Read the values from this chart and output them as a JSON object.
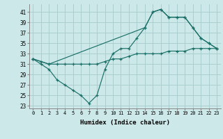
{
  "xlabel": "Humidex (Indice chaleur)",
  "xlim": [
    -0.5,
    23.5
  ],
  "ylim": [
    22.5,
    42.5
  ],
  "xticks": [
    0,
    1,
    2,
    3,
    4,
    5,
    6,
    7,
    8,
    9,
    10,
    11,
    12,
    13,
    14,
    15,
    16,
    17,
    18,
    19,
    20,
    21,
    22,
    23
  ],
  "yticks": [
    23,
    25,
    27,
    29,
    31,
    33,
    35,
    37,
    39,
    41
  ],
  "bg_color": "#cce8e8",
  "line_color": "#1a7068",
  "grid_color": "#aacece",
  "line1_x": [
    0,
    1,
    2,
    3,
    4,
    5,
    6,
    7,
    8,
    9,
    10,
    11,
    12,
    13,
    14,
    15,
    16,
    17,
    18,
    19,
    20,
    21,
    22,
    23
  ],
  "line1_y": [
    32,
    31,
    30,
    28,
    27,
    26,
    25,
    23.5,
    25,
    30,
    33,
    34,
    34,
    36,
    38,
    41,
    41.5,
    40,
    40,
    40,
    38,
    36,
    35,
    34
  ],
  "line2_x": [
    0,
    2,
    14,
    15,
    16,
    17,
    18,
    19,
    20,
    21,
    22,
    23
  ],
  "line2_y": [
    32,
    31,
    38,
    41,
    41.5,
    40,
    40,
    40,
    38,
    36,
    35,
    34
  ],
  "line3_x": [
    0,
    1,
    2,
    3,
    4,
    5,
    6,
    7,
    8,
    9,
    10,
    11,
    12,
    13,
    14,
    15,
    16,
    17,
    18,
    19,
    20,
    21,
    22,
    23
  ],
  "line3_y": [
    32,
    31.5,
    31,
    31,
    31,
    31,
    31,
    31,
    31,
    31.5,
    32,
    32,
    32.5,
    33,
    33,
    33,
    33,
    33.5,
    33.5,
    33.5,
    34,
    34,
    34,
    34
  ]
}
